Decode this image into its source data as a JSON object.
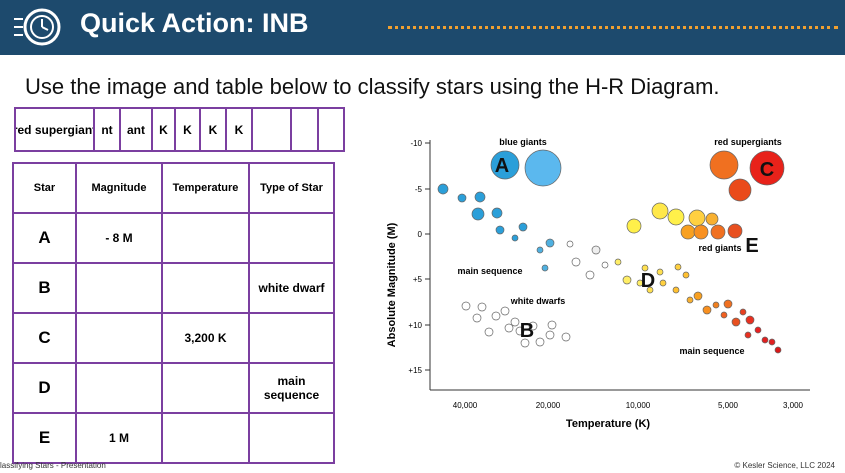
{
  "header": {
    "title": "Quick Action: INB"
  },
  "instruction": "Use the image and table below to classify stars using the H-R Diagram.",
  "strip": {
    "cells": [
      "red supergiant",
      "nt",
      "ant",
      "K",
      "K",
      "K",
      "K"
    ]
  },
  "table": {
    "headers": [
      "Star",
      "Magnitude",
      "Temperature",
      "Type of Star"
    ],
    "rows": [
      {
        "star": "A",
        "magnitude": "- 8  M"
      },
      {
        "star": "B",
        "type": "white dwarf"
      },
      {
        "star": "C",
        "temperature": "3,200 K"
      },
      {
        "star": "D",
        "type": "main sequence"
      },
      {
        "star": "E",
        "magnitude": "1 M"
      }
    ]
  },
  "diagram": {
    "y_axis_title": "Absolute Magnitude (M)",
    "x_axis_title": "Temperature (K)",
    "y_ticks": [
      "-10",
      "-5",
      "0",
      "+5",
      "+10",
      "+15"
    ],
    "x_ticks": [
      "40,000",
      "20,000",
      "10,000",
      "5,000",
      "3,000"
    ],
    "labels": {
      "blue_giants": "blue giants",
      "red_supergiants": "red supergiants",
      "red_giants": "red giants",
      "main_sequence_left": "main sequence",
      "main_sequence_right": "main sequence",
      "white_dwarfs": "white dwarfs"
    },
    "star_letters": [
      "A",
      "B",
      "C",
      "D",
      "E"
    ]
  },
  "footer": {
    "left": "lassifying Stars - Presentation",
    "right": "© Kesler Science, LLC 2024"
  }
}
